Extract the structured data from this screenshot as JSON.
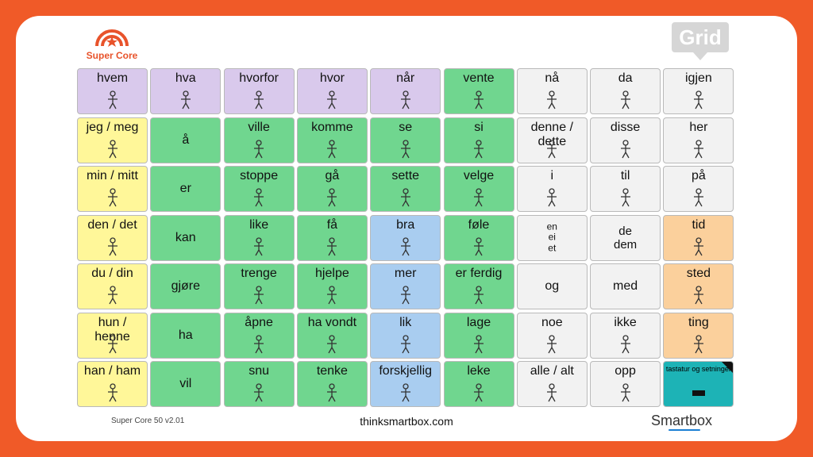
{
  "header": {
    "logo_text": "Super Core",
    "grid_logo": "Grid"
  },
  "grid": {
    "rows": [
      [
        {
          "label": "hvem",
          "color": "#d9c9ec"
        },
        {
          "label": "hva",
          "color": "#d9c9ec"
        },
        {
          "label": "hvorfor",
          "color": "#d9c9ec"
        },
        {
          "label": "hvor",
          "color": "#d9c9ec"
        },
        {
          "label": "når",
          "color": "#d9c9ec"
        },
        {
          "label": "vente",
          "color": "#70d68f"
        },
        {
          "label": "nå",
          "color": "#f2f2f2"
        },
        {
          "label": "da",
          "color": "#f2f2f2"
        },
        {
          "label": "igjen",
          "color": "#f2f2f2"
        }
      ],
      [
        {
          "label": "jeg / meg",
          "color": "#fff799"
        },
        {
          "label": "å",
          "color": "#70d68f"
        },
        {
          "label": "ville",
          "color": "#70d68f"
        },
        {
          "label": "komme",
          "color": "#70d68f"
        },
        {
          "label": "se",
          "color": "#70d68f"
        },
        {
          "label": "si",
          "color": "#70d68f"
        },
        {
          "label": "denne / dette",
          "color": "#f2f2f2"
        },
        {
          "label": "disse",
          "color": "#f2f2f2"
        },
        {
          "label": "her",
          "color": "#f2f2f2"
        }
      ],
      [
        {
          "label": "min / mitt",
          "color": "#fff799"
        },
        {
          "label": "er",
          "color": "#70d68f"
        },
        {
          "label": "stoppe",
          "color": "#70d68f"
        },
        {
          "label": "gå",
          "color": "#70d68f"
        },
        {
          "label": "sette",
          "color": "#70d68f"
        },
        {
          "label": "velge",
          "color": "#70d68f"
        },
        {
          "label": "i",
          "color": "#f2f2f2"
        },
        {
          "label": "til",
          "color": "#f2f2f2"
        },
        {
          "label": "på",
          "color": "#f2f2f2"
        }
      ],
      [
        {
          "label": "den / det",
          "color": "#fff799"
        },
        {
          "label": "kan",
          "color": "#70d68f"
        },
        {
          "label": "like",
          "color": "#70d68f"
        },
        {
          "label": "få",
          "color": "#70d68f"
        },
        {
          "label": "bra",
          "color": "#a9cdf0"
        },
        {
          "label": "føle",
          "color": "#70d68f"
        },
        {
          "label": "en\nei\net",
          "color": "#f2f2f2"
        },
        {
          "label": "de\ndem",
          "color": "#f2f2f2"
        },
        {
          "label": "tid",
          "color": "#fbd09c"
        }
      ],
      [
        {
          "label": "du / din",
          "color": "#fff799"
        },
        {
          "label": "gjøre",
          "color": "#70d68f"
        },
        {
          "label": "trenge",
          "color": "#70d68f"
        },
        {
          "label": "hjelpe",
          "color": "#70d68f"
        },
        {
          "label": "mer",
          "color": "#a9cdf0"
        },
        {
          "label": "er ferdig",
          "color": "#70d68f"
        },
        {
          "label": "og",
          "color": "#f2f2f2"
        },
        {
          "label": "med",
          "color": "#f2f2f2"
        },
        {
          "label": "sted",
          "color": "#fbd09c"
        }
      ],
      [
        {
          "label": "hun / henne",
          "color": "#fff799"
        },
        {
          "label": "ha",
          "color": "#70d68f"
        },
        {
          "label": "åpne",
          "color": "#70d68f"
        },
        {
          "label": "ha vondt",
          "color": "#70d68f"
        },
        {
          "label": "lik",
          "color": "#a9cdf0"
        },
        {
          "label": "lage",
          "color": "#70d68f"
        },
        {
          "label": "noe",
          "color": "#f2f2f2"
        },
        {
          "label": "ikke",
          "color": "#f2f2f2"
        },
        {
          "label": "ting",
          "color": "#fbd09c"
        }
      ],
      [
        {
          "label": "han / ham",
          "color": "#fff799"
        },
        {
          "label": "vil",
          "color": "#70d68f"
        },
        {
          "label": "snu",
          "color": "#70d68f"
        },
        {
          "label": "tenke",
          "color": "#70d68f"
        },
        {
          "label": "forskjellig",
          "color": "#a9cdf0"
        },
        {
          "label": "leke",
          "color": "#70d68f"
        },
        {
          "label": "alle / alt",
          "color": "#f2f2f2"
        },
        {
          "label": "opp",
          "color": "#f2f2f2"
        },
        {
          "label": "tastatur og setninger",
          "color": "#1db3b6"
        }
      ]
    ]
  },
  "footer": {
    "version": "Super Core 50 v2.01",
    "website": "thinksmartbox.com",
    "brand": "Smartbox"
  }
}
